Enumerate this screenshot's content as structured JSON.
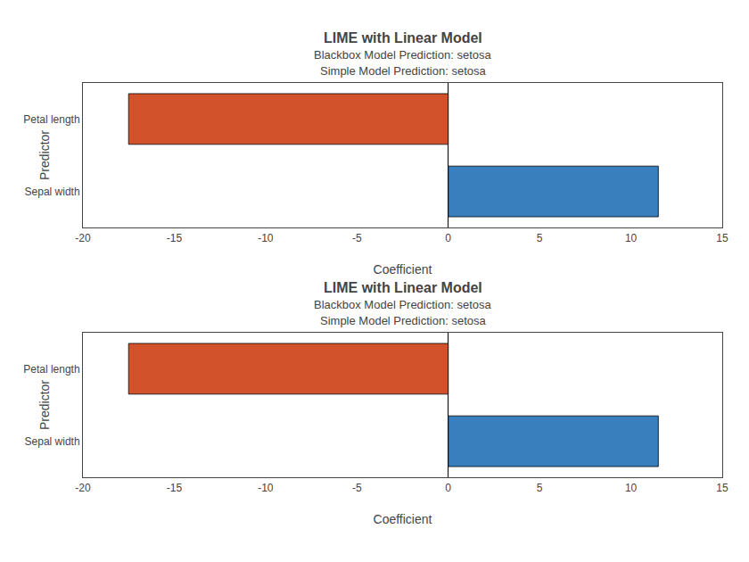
{
  "chart_data": [
    {
      "type": "bar",
      "orientation": "horizontal",
      "title": "LIME with Linear Model",
      "subtitle": [
        "Blackbox Model Prediction: setosa",
        "Simple Model Prediction: setosa"
      ],
      "xlabel": "Coefficient",
      "ylabel": "Predictor",
      "categories": [
        "Petal length",
        "Sepal width"
      ],
      "values": [
        -17.5,
        11.5
      ],
      "colors": [
        "#D2532B",
        "#3A7FBD"
      ],
      "xlim": [
        -20,
        15
      ],
      "xticks": [
        -20,
        -15,
        -10,
        -5,
        0,
        5,
        10,
        15
      ],
      "grid": false
    },
    {
      "type": "bar",
      "orientation": "horizontal",
      "title": "LIME with Linear Model",
      "subtitle": [
        "Blackbox Model Prediction: setosa",
        "Simple Model Prediction: setosa"
      ],
      "xlabel": "Coefficient",
      "ylabel": "Predictor",
      "categories": [
        "Petal length",
        "Sepal width"
      ],
      "values": [
        -17.5,
        11.5
      ],
      "colors": [
        "#D2532B",
        "#3A7FBD"
      ],
      "xlim": [
        -20,
        15
      ],
      "xticks": [
        -20,
        -15,
        -10,
        -5,
        0,
        5,
        10,
        15
      ],
      "grid": false
    }
  ]
}
